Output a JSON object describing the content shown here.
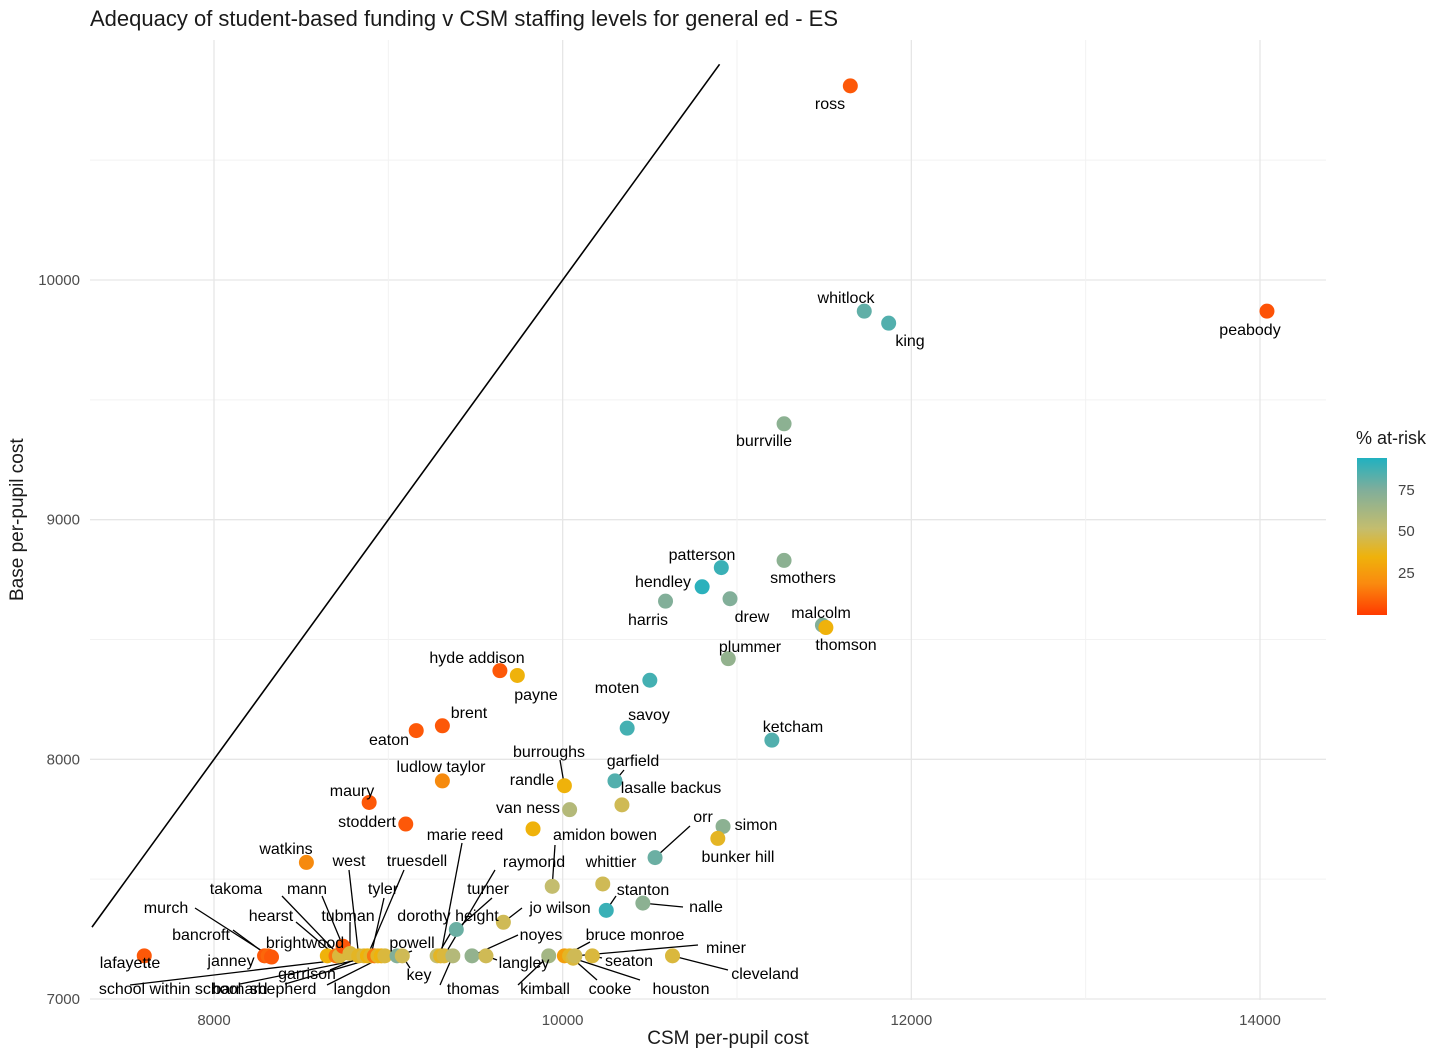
{
  "chart_data": {
    "type": "scatter",
    "title": "Adequacy of student-based funding v CSM staffing levels for general ed - ES",
    "xlabel": "CSM per-pupil cost",
    "ylabel": "Base per-pupil cost",
    "xlim": [
      7300,
      14400
    ],
    "ylim": [
      7000,
      11000
    ],
    "x_ticks": [
      8000,
      10000,
      12000,
      14000
    ],
    "y_ticks": [
      7000,
      8000,
      9000,
      10000
    ],
    "reference_line": {
      "description": "y = x",
      "slope": 1,
      "intercept": 0
    },
    "legend": {
      "title": "% at-risk",
      "ticks": [
        25,
        50,
        75
      ],
      "range": [
        0,
        95
      ],
      "position": "right"
    },
    "points": [
      {
        "name": "ross",
        "x": 11650,
        "y": 10810,
        "at_risk": 10
      },
      {
        "name": "peabody",
        "x": 14040,
        "y": 9870,
        "at_risk": 8
      },
      {
        "name": "whitlock",
        "x": 11730,
        "y": 9870,
        "at_risk": 82
      },
      {
        "name": "king",
        "x": 11870,
        "y": 9820,
        "at_risk": 85
      },
      {
        "name": "burrville",
        "x": 11270,
        "y": 9400,
        "at_risk": 72
      },
      {
        "name": "patterson",
        "x": 10910,
        "y": 8800,
        "at_risk": 90
      },
      {
        "name": "smothers",
        "x": 11270,
        "y": 8830,
        "at_risk": 72
      },
      {
        "name": "hendley",
        "x": 10800,
        "y": 8720,
        "at_risk": 93
      },
      {
        "name": "harris",
        "x": 10590,
        "y": 8660,
        "at_risk": 75
      },
      {
        "name": "drew",
        "x": 10960,
        "y": 8670,
        "at_risk": 75
      },
      {
        "name": "malcolm",
        "x": 11490,
        "y": 8560,
        "at_risk": 75
      },
      {
        "name": "thomson",
        "x": 11510,
        "y": 8550,
        "at_risk": 35
      },
      {
        "name": "plummer",
        "x": 10950,
        "y": 8420,
        "at_risk": 70
      },
      {
        "name": "hyde addison",
        "x": 9640,
        "y": 8370,
        "at_risk": 10
      },
      {
        "name": "payne",
        "x": 9740,
        "y": 8350,
        "at_risk": 35
      },
      {
        "name": "moten",
        "x": 10500,
        "y": 8330,
        "at_risk": 88
      },
      {
        "name": "savoy",
        "x": 10370,
        "y": 8130,
        "at_risk": 88
      },
      {
        "name": "ketcham",
        "x": 11200,
        "y": 8080,
        "at_risk": 85
      },
      {
        "name": "brent",
        "x": 9310,
        "y": 8140,
        "at_risk": 10
      },
      {
        "name": "eaton",
        "x": 9160,
        "y": 8120,
        "at_risk": 10
      },
      {
        "name": "ludlow taylor",
        "x": 9310,
        "y": 7910,
        "at_risk": 25
      },
      {
        "name": "burroughs",
        "x": 10010,
        "y": 7890,
        "at_risk": 35
      },
      {
        "name": "garfield",
        "x": 10300,
        "y": 7910,
        "at_risk": 85
      },
      {
        "name": "randle",
        "x": 10040,
        "y": 7790,
        "at_risk": 60
      },
      {
        "name": "lasalle backus",
        "x": 10340,
        "y": 7810,
        "at_risk": 50
      },
      {
        "name": "van ness",
        "x": 9830,
        "y": 7710,
        "at_risk": 35
      },
      {
        "name": "maury",
        "x": 8890,
        "y": 7820,
        "at_risk": 10
      },
      {
        "name": "stoddert",
        "x": 9100,
        "y": 7730,
        "at_risk": 10
      },
      {
        "name": "simon",
        "x": 10920,
        "y": 7720,
        "at_risk": 72
      },
      {
        "name": "bunker hill",
        "x": 10890,
        "y": 7670,
        "at_risk": 40
      },
      {
        "name": "orr",
        "x": 10530,
        "y": 7590,
        "at_risk": 80
      },
      {
        "name": "watkins",
        "x": 8530,
        "y": 7570,
        "at_risk": 25
      },
      {
        "name": "amidon bowen",
        "x": 9940,
        "y": 7470,
        "at_risk": 55
      },
      {
        "name": "whittier",
        "x": 10230,
        "y": 7480,
        "at_risk": 50
      },
      {
        "name": "stanton",
        "x": 10250,
        "y": 7370,
        "at_risk": 90
      },
      {
        "name": "nalle",
        "x": 10460,
        "y": 7400,
        "at_risk": 72
      },
      {
        "name": "jo wilson",
        "x": 9660,
        "y": 7320,
        "at_risk": 50
      },
      {
        "name": "turner",
        "x": 9390,
        "y": 7290,
        "at_risk": 80
      },
      {
        "name": "lafayette",
        "x": 7600,
        "y": 7180,
        "at_risk": 10
      },
      {
        "name": "janney",
        "x": 8290,
        "y": 7180,
        "at_risk": 10
      },
      {
        "name": "bancroft",
        "x": 8310,
        "y": 7180,
        "at_risk": 15
      },
      {
        "name": "murch",
        "x": 8330,
        "y": 7175,
        "at_risk": 10
      },
      {
        "name": "brightwood",
        "x": 8650,
        "y": 7180,
        "at_risk": 35
      },
      {
        "name": "hearst",
        "x": 8700,
        "y": 7180,
        "at_risk": 20
      },
      {
        "name": "takoma",
        "x": 8720,
        "y": 7180,
        "at_risk": 45
      },
      {
        "name": "mann",
        "x": 8740,
        "y": 7220,
        "at_risk": 10
      },
      {
        "name": "tubman",
        "x": 8780,
        "y": 7190,
        "at_risk": 45
      },
      {
        "name": "west",
        "x": 8830,
        "y": 7180,
        "at_risk": 40
      },
      {
        "name": "garrison",
        "x": 8860,
        "y": 7180,
        "at_risk": 45
      },
      {
        "name": "truesdell",
        "x": 8880,
        "y": 7180,
        "at_risk": 35
      },
      {
        "name": "tyler",
        "x": 8900,
        "y": 7180,
        "at_risk": 40
      },
      {
        "name": "school within school",
        "x": 8920,
        "y": 7180,
        "at_risk": 20
      },
      {
        "name": "seaton",
        "x": 10170,
        "y": 7180,
        "at_risk": 45
      },
      {
        "name": "barnard",
        "x": 8940,
        "y": 7180,
        "at_risk": 40
      },
      {
        "name": "shepherd",
        "x": 8960,
        "y": 7180,
        "at_risk": 35
      },
      {
        "name": "langdon",
        "x": 8980,
        "y": 7180,
        "at_risk": 45
      },
      {
        "name": "powell",
        "x": 9050,
        "y": 7180,
        "at_risk": 75
      },
      {
        "name": "key",
        "x": 9080,
        "y": 7180,
        "at_risk": 50
      },
      {
        "name": "dorothy height",
        "x": 9280,
        "y": 7180,
        "at_risk": 55
      },
      {
        "name": "marie reed",
        "x": 9300,
        "y": 7180,
        "at_risk": 40
      },
      {
        "name": "raymond",
        "x": 9320,
        "y": 7180,
        "at_risk": 45
      },
      {
        "name": "thomas",
        "x": 9370,
        "y": 7180,
        "at_risk": 60
      },
      {
        "name": "noyes",
        "x": 9480,
        "y": 7180,
        "at_risk": 70
      },
      {
        "name": "langley",
        "x": 9560,
        "y": 7180,
        "at_risk": 50
      },
      {
        "name": "kimball",
        "x": 9920,
        "y": 7180,
        "at_risk": 65
      },
      {
        "name": "bruce monroe",
        "x": 10010,
        "y": 7180,
        "at_risk": 30
      },
      {
        "name": "cooke",
        "x": 10040,
        "y": 7180,
        "at_risk": 40
      },
      {
        "name": "houston",
        "x": 10060,
        "y": 7170,
        "at_risk": 45
      },
      {
        "name": "miner",
        "x": 10070,
        "y": 7180,
        "at_risk": 50
      },
      {
        "name": "cleveland",
        "x": 10630,
        "y": 7180,
        "at_risk": 45
      }
    ]
  }
}
